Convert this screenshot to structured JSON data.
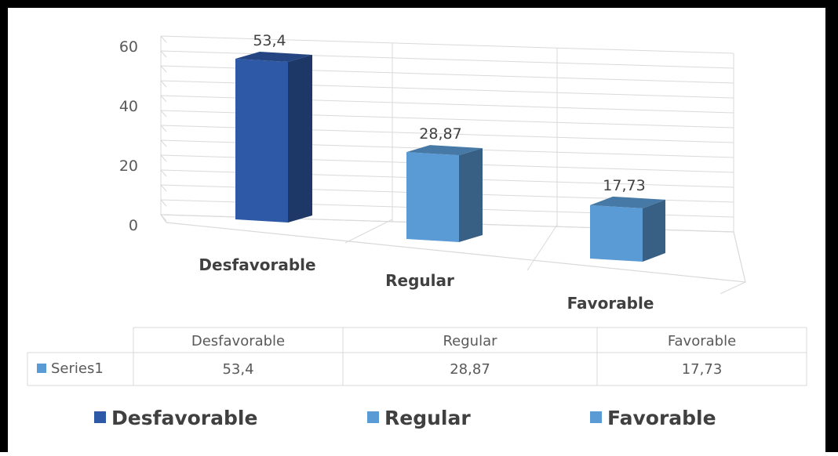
{
  "colors": {
    "desfavorable": "#2e59a6",
    "regular": "#5b9bd5",
    "favorable": "#5b9bd5",
    "grid": "#d9d9d9"
  },
  "chart_data": {
    "type": "bar",
    "style": "3d-column",
    "categories": [
      "Desfavorable",
      "Regular",
      "Favorable"
    ],
    "series": [
      {
        "name": "Series1",
        "values": [
          53.4,
          28.87,
          17.73
        ]
      }
    ],
    "data_labels": [
      "53,4",
      "28,87",
      "17,73"
    ],
    "ylim": [
      0,
      60
    ],
    "yticks": [
      0,
      20,
      40,
      60
    ],
    "ytick_labels": [
      "0",
      "20",
      "40",
      "60"
    ],
    "grid": true,
    "data_table": {
      "headers": [
        "Desfavorable",
        "Regular",
        "Favorable"
      ],
      "rows": [
        {
          "label": "Series1",
          "values": [
            "53,4",
            "28,87",
            "17,73"
          ]
        }
      ]
    },
    "legend": {
      "position": "bottom",
      "entries": [
        "Desfavorable",
        "Regular",
        "Favorable"
      ]
    }
  }
}
